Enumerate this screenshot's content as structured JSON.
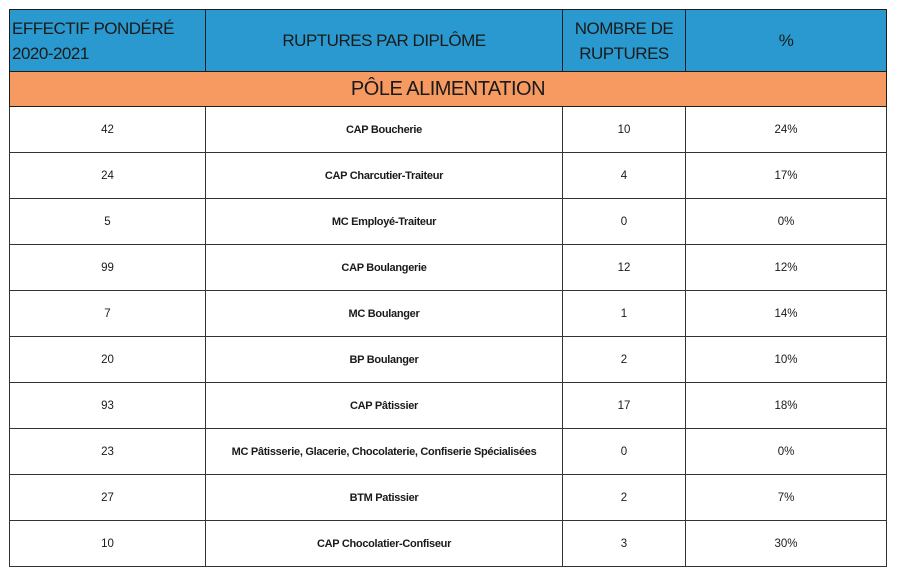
{
  "headers": {
    "effectif": "EFFECTIF PONDÉRÉ 2020-2021",
    "ruptures_diplome": "RUPTURES PAR DIPLÔME",
    "nombre": "NOMBRE DE RUPTURES",
    "percent": "%"
  },
  "section": "PÔLE ALIMENTATION",
  "rows": [
    {
      "effectif": "42",
      "diplome": "CAP Boucherie",
      "ruptures": "10",
      "pct": "24%"
    },
    {
      "effectif": "24",
      "diplome": "CAP Charcutier-Traiteur",
      "ruptures": "4",
      "pct": "17%"
    },
    {
      "effectif": "5",
      "diplome": "MC Employé-Traiteur",
      "ruptures": "0",
      "pct": "0%"
    },
    {
      "effectif": "99",
      "diplome": "CAP Boulangerie",
      "ruptures": "12",
      "pct": "12%"
    },
    {
      "effectif": "7",
      "diplome": "MC Boulanger",
      "ruptures": "1",
      "pct": "14%"
    },
    {
      "effectif": "20",
      "diplome": "BP Boulanger",
      "ruptures": "2",
      "pct": "10%"
    },
    {
      "effectif": "93",
      "diplome": "CAP Pâtissier",
      "ruptures": "17",
      "pct": "18%"
    },
    {
      "effectif": "23",
      "diplome": "MC Pâtisserie, Glacerie, Chocolaterie, Confiserie Spécialisées",
      "ruptures": "0",
      "pct": "0%"
    },
    {
      "effectif": "27",
      "diplome": "BTM Patissier",
      "ruptures": "2",
      "pct": "7%"
    },
    {
      "effectif": "10",
      "diplome": "CAP Chocolatier-Confiseur",
      "ruptures": "3",
      "pct": "30%"
    }
  ],
  "colors": {
    "header_bg": "#2999cf",
    "section_bg": "#f79a62"
  }
}
